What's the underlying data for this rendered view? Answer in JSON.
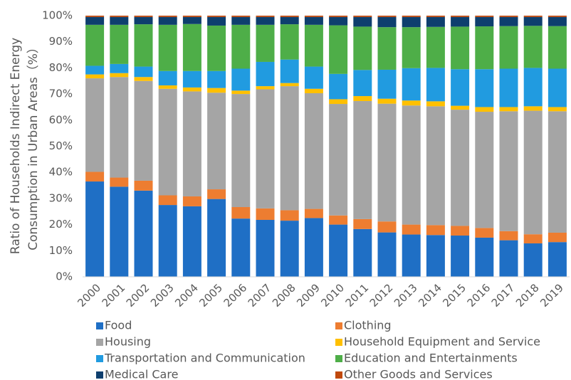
{
  "chart_data": {
    "type": "stacked-bar",
    "ylabel": [
      "Ratio of Households Indirect Energy",
      "Consumption in Urban Areas（%）"
    ],
    "categories": [
      "2000",
      "2001",
      "2002",
      "2003",
      "2004",
      "2005",
      "2006",
      "2007",
      "2008",
      "2009",
      "2010",
      "2011",
      "2012",
      "2013",
      "2014",
      "2015",
      "2016",
      "2017",
      "2018",
      "2019"
    ],
    "ylim": [
      0,
      100
    ],
    "yticks": [
      {
        "value": 0,
        "label": "0%"
      },
      {
        "value": 10,
        "label": "10%"
      },
      {
        "value": 20,
        "label": "20%"
      },
      {
        "value": 30,
        "label": "30%"
      },
      {
        "value": 40,
        "label": "40%"
      },
      {
        "value": 50,
        "label": "50%"
      },
      {
        "value": 60,
        "label": "60%"
      },
      {
        "value": 70,
        "label": "70%"
      },
      {
        "value": 80,
        "label": "80%"
      },
      {
        "value": 90,
        "label": "90%"
      },
      {
        "value": 100,
        "label": "100%"
      }
    ],
    "legend": "bottom",
    "series": [
      {
        "name": "Food",
        "color": "#1f6fc5",
        "values": [
          36.5,
          34.5,
          33.0,
          27.5,
          27.0,
          29.8,
          22.3,
          21.8,
          21.5,
          22.5,
          20.0,
          18.3,
          17.0,
          16.2,
          16.0,
          15.8,
          15.0,
          14.0,
          12.8,
          13.3
        ]
      },
      {
        "name": "Clothing",
        "color": "#ed7d31",
        "values": [
          3.7,
          3.5,
          3.8,
          3.7,
          3.8,
          3.7,
          4.4,
          4.4,
          4.0,
          3.5,
          3.5,
          3.8,
          4.2,
          3.8,
          3.8,
          3.7,
          3.7,
          3.5,
          3.5,
          3.6
        ]
      },
      {
        "name": "Housing",
        "color": "#a5a5a5",
        "values": [
          35.8,
          38.5,
          38.2,
          40.8,
          40.2,
          37.0,
          43.3,
          45.6,
          47.5,
          44.3,
          42.7,
          45.2,
          45.1,
          45.6,
          45.5,
          44.5,
          44.5,
          45.9,
          47.3,
          46.5
        ]
      },
      {
        "name": "Household Equipment and Service",
        "color": "#ffc000",
        "values": [
          1.5,
          1.5,
          1.5,
          1.3,
          1.5,
          1.8,
          1.3,
          1.2,
          1.2,
          1.7,
          1.8,
          1.9,
          1.9,
          1.9,
          1.9,
          1.5,
          1.8,
          1.6,
          1.7,
          1.6
        ]
      },
      {
        "name": "Transportation and Communication",
        "color": "#219be0",
        "values": [
          3.3,
          3.5,
          4.0,
          5.5,
          6.3,
          6.5,
          8.4,
          9.3,
          9.0,
          8.5,
          9.7,
          10.0,
          11.1,
          12.4,
          12.8,
          14.0,
          14.5,
          14.7,
          14.7,
          14.7
        ]
      },
      {
        "name": "Education and Entertainments",
        "color": "#4eae48",
        "values": [
          15.7,
          15.0,
          16.2,
          17.7,
          18.0,
          17.4,
          16.8,
          14.2,
          13.5,
          16.0,
          18.6,
          16.6,
          16.3,
          15.7,
          15.7,
          16.3,
          16.4,
          16.3,
          16.1,
          16.3
        ]
      },
      {
        "name": "Medical Care",
        "color": "#0e3f6e",
        "values": [
          3.0,
          3.0,
          2.8,
          3.0,
          2.7,
          3.3,
          3.0,
          3.0,
          2.8,
          3.0,
          3.2,
          3.7,
          3.9,
          3.9,
          3.8,
          3.7,
          3.6,
          3.5,
          3.4,
          3.5
        ]
      },
      {
        "name": "Other Goods and Services",
        "color": "#c0490c",
        "values": [
          0.5,
          0.5,
          0.5,
          0.5,
          0.5,
          0.5,
          0.5,
          0.5,
          0.5,
          0.5,
          0.5,
          0.5,
          0.5,
          0.5,
          0.5,
          0.5,
          0.5,
          0.5,
          0.5,
          0.5
        ]
      }
    ]
  }
}
